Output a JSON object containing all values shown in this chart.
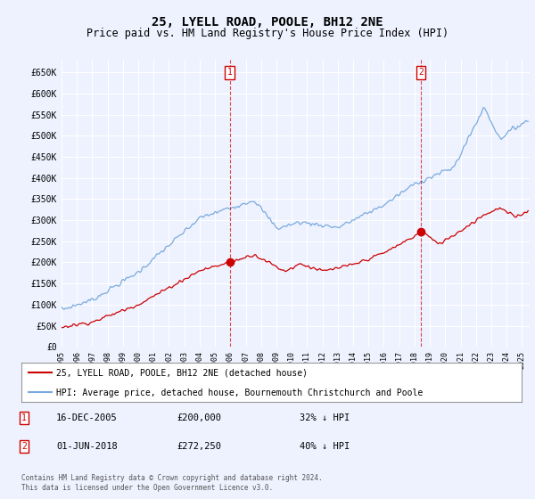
{
  "title": "25, LYELL ROAD, POOLE, BH12 2NE",
  "subtitle": "Price paid vs. HM Land Registry's House Price Index (HPI)",
  "title_fontsize": 10,
  "subtitle_fontsize": 8.5,
  "ylabel_ticks": [
    "£0",
    "£50K",
    "£100K",
    "£150K",
    "£200K",
    "£250K",
    "£300K",
    "£350K",
    "£400K",
    "£450K",
    "£500K",
    "£550K",
    "£600K",
    "£650K"
  ],
  "ylabel_values": [
    0,
    50000,
    100000,
    150000,
    200000,
    250000,
    300000,
    350000,
    400000,
    450000,
    500000,
    550000,
    600000,
    650000
  ],
  "ylim": [
    0,
    680000
  ],
  "xlim_start": 1995.0,
  "xlim_end": 2025.5,
  "background_color": "#eef2ff",
  "plot_bg_color": "#eef2ff",
  "grid_color": "#ffffff",
  "red_line_color": "#cc0000",
  "blue_line_color": "#7aaadd",
  "sale1_x": 2005.96,
  "sale1_y": 200000,
  "sale1_label": "1",
  "sale2_x": 2018.42,
  "sale2_y": 272250,
  "sale2_label": "2",
  "legend_line1": "25, LYELL ROAD, POOLE, BH12 2NE (detached house)",
  "legend_line2": "HPI: Average price, detached house, Bournemouth Christchurch and Poole",
  "note1_label": "1",
  "note1_date": "16-DEC-2005",
  "note1_price": "£200,000",
  "note1_hpi": "32% ↓ HPI",
  "note2_label": "2",
  "note2_date": "01-JUN-2018",
  "note2_price": "£272,250",
  "note2_hpi": "40% ↓ HPI",
  "copyright_text": "Contains HM Land Registry data © Crown copyright and database right 2024.\nThis data is licensed under the Open Government Licence v3.0."
}
